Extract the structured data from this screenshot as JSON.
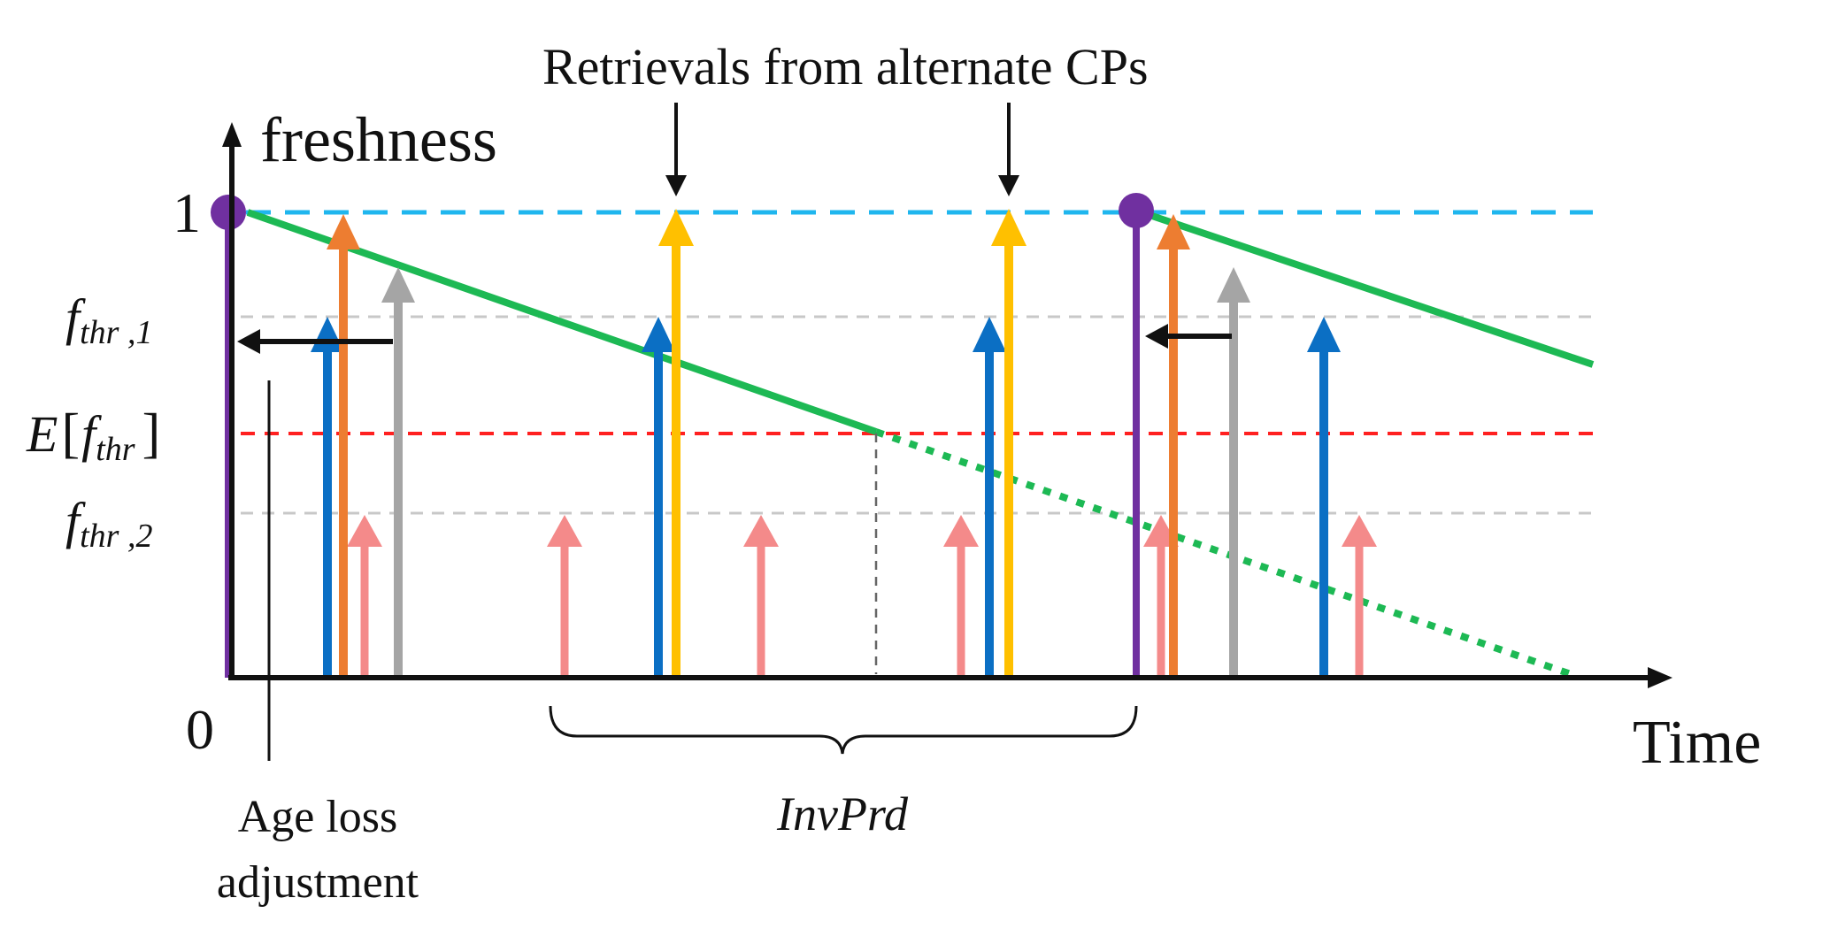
{
  "labels": {
    "y_axis": "freshness",
    "x_axis": "Time",
    "y_one": "1",
    "origin": "0",
    "retrievals": "Retrievals from alternate CPs",
    "age_loss_line1": "Age loss",
    "age_loss_line2": "adjustment",
    "invprd": "InvPrd"
  },
  "thresholds": {
    "f1": {
      "base": "f",
      "sub": "thr ,1"
    },
    "f2": {
      "base": "f",
      "sub": "thr ,2"
    },
    "ef": {
      "prefix": "E",
      "open": "[",
      "base": "f",
      "sub": "thr",
      "close": "]"
    }
  },
  "colors": {
    "purple": "#7030A0",
    "green": "#1DB954",
    "cyan": "#1FB6EE",
    "red": "#FF2020",
    "gray_dash": "#C8C8C8",
    "blue": "#0B6FC4",
    "orange": "#ED7D31",
    "gray": "#A5A5A5",
    "yellow": "#FFC000",
    "pink": "#F48A8A",
    "black": "#111111"
  },
  "icons": {
    "retrieval_pointer": "arrow-down",
    "age_adjust": "arrow-left",
    "axis_head": "arrow-up"
  }
}
